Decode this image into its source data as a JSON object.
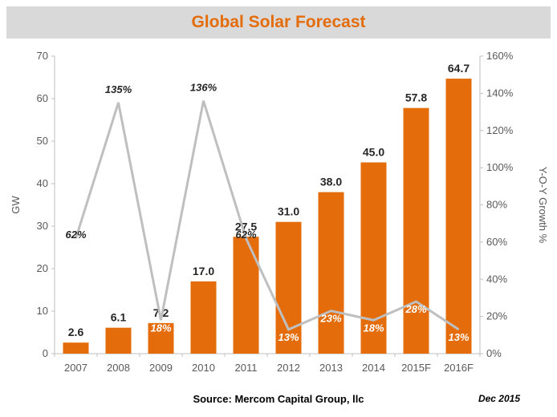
{
  "chart_data": {
    "type": "bar",
    "title": "Global Solar Forecast",
    "categories": [
      "2007",
      "2008",
      "2009",
      "2010",
      "2011",
      "2012",
      "2013",
      "2014",
      "2015F",
      "2016F"
    ],
    "series": [
      {
        "name": "",
        "type": "bar",
        "axis": "left",
        "values": [
          2.6,
          6.1,
          7.2,
          17.0,
          27.5,
          31.0,
          38.0,
          45.0,
          57.8,
          64.7
        ],
        "labels": [
          "2.6",
          "6.1",
          "7.2",
          "17.0",
          "27.5",
          "31.0",
          "38.0",
          "45.0",
          "57.8",
          "64.7"
        ]
      },
      {
        "name": "",
        "type": "line",
        "axis": "right",
        "values": [
          62,
          135,
          18,
          136,
          62,
          13,
          23,
          18,
          28,
          13
        ],
        "labels": [
          "62%",
          "135%",
          "18%",
          "136%",
          "62%",
          "13%",
          "23%",
          "18%",
          "28%",
          "13%"
        ]
      }
    ],
    "ylabel": "GW",
    "y2label": "Y-O-Y Growth %",
    "ylim": [
      0,
      70
    ],
    "y2lim": [
      0,
      160
    ],
    "yticks": [
      "0",
      "10",
      "20",
      "30",
      "40",
      "50",
      "60",
      "70"
    ],
    "y2ticks": [
      "0%",
      "20%",
      "40%",
      "60%",
      "80%",
      "100%",
      "120%",
      "140%",
      "160%"
    ],
    "grid": false,
    "legend": "none"
  },
  "footer": {
    "source": "Source: Mercom Capital Group, llc",
    "date": "Dec 2015"
  },
  "colors": {
    "bar": "#e46c0a",
    "line": "#bfbfbf",
    "title": "#e46c0a",
    "title_bg": "#d9d9d9"
  }
}
